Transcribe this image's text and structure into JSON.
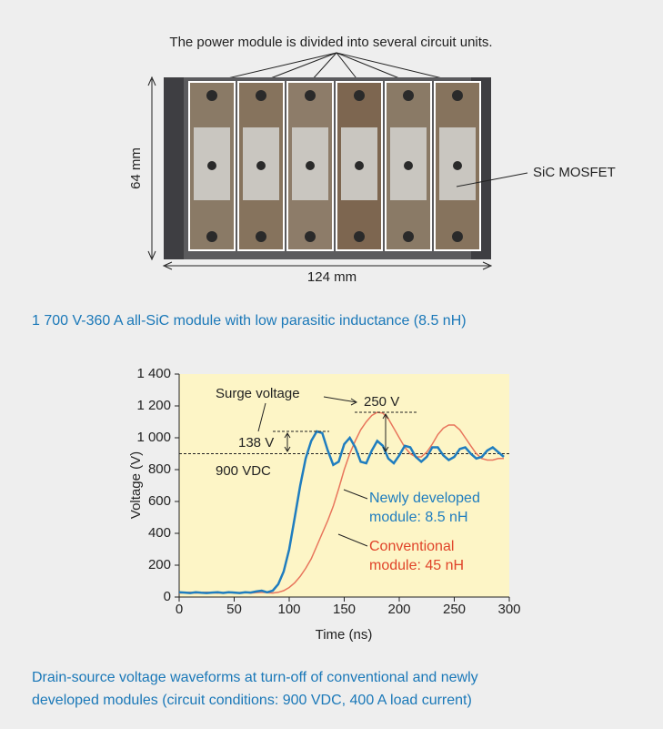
{
  "photo": {
    "heading": "The power module is divided into several circuit units.",
    "height_label": "64 mm",
    "width_label": "124 mm",
    "component_label": "SiC MOSFET",
    "caption": "1 700 V-360 A all-SiC module with low parasitic inductance (8.5 nH)"
  },
  "chart_data": {
    "type": "line",
    "x_label": "Time (ns)",
    "y_label": "Voltage (V)",
    "x": [
      0,
      5,
      10,
      15,
      20,
      25,
      30,
      35,
      40,
      45,
      50,
      55,
      60,
      65,
      70,
      75,
      80,
      85,
      90,
      95,
      100,
      105,
      110,
      115,
      120,
      125,
      130,
      135,
      140,
      145,
      150,
      155,
      160,
      165,
      170,
      175,
      180,
      185,
      190,
      195,
      200,
      205,
      210,
      215,
      220,
      225,
      230,
      235,
      240,
      245,
      250,
      255,
      260,
      265,
      270,
      275,
      280,
      285,
      290,
      295
    ],
    "series": [
      {
        "name": "Newly developed module: 8.5 nH",
        "color": "#1f7dbf",
        "values": [
          30,
          28,
          25,
          30,
          27,
          25,
          28,
          30,
          26,
          30,
          28,
          25,
          30,
          28,
          35,
          40,
          30,
          40,
          80,
          160,
          300,
          500,
          700,
          870,
          980,
          1040,
          1030,
          920,
          830,
          850,
          960,
          1000,
          940,
          850,
          840,
          920,
          980,
          950,
          870,
          840,
          890,
          950,
          940,
          880,
          850,
          880,
          940,
          940,
          890,
          860,
          880,
          930,
          940,
          900,
          870,
          880,
          920,
          940,
          910,
          880
        ]
      },
      {
        "name": "Conventional module: 45 nH",
        "color": "#e8755c",
        "values": [
          25,
          28,
          30,
          25,
          28,
          30,
          27,
          25,
          28,
          30,
          26,
          28,
          30,
          25,
          28,
          30,
          27,
          25,
          30,
          40,
          60,
          90,
          130,
          180,
          240,
          320,
          400,
          480,
          570,
          680,
          800,
          900,
          980,
          1050,
          1100,
          1140,
          1160,
          1155,
          1120,
          1060,
          1000,
          940,
          900,
          880,
          880,
          910,
          960,
          1020,
          1060,
          1080,
          1080,
          1050,
          1000,
          950,
          900,
          870,
          860,
          860,
          870,
          870
        ]
      }
    ],
    "xlim": [
      0,
      300
    ],
    "xticks": [
      0,
      50,
      100,
      150,
      200,
      250,
      300
    ],
    "ylim": [
      0,
      1400
    ],
    "yticks": [
      0,
      200,
      400,
      600,
      800,
      {
        "value": 1000,
        "label": "1 000"
      },
      {
        "value": 1200,
        "label": "1 200"
      },
      {
        "value": 1400,
        "label": "1 400"
      }
    ],
    "grid": false,
    "reference_lines": [
      {
        "value": 900,
        "label": "900 VDC"
      }
    ],
    "annotations": [
      "Surge voltage",
      "250 V",
      "138 V"
    ],
    "caption": [
      "Drain-source voltage waveforms at turn-off of conventional and newly",
      "developed modules (circuit conditions: 900 VDC, 400 A load current)"
    ]
  }
}
